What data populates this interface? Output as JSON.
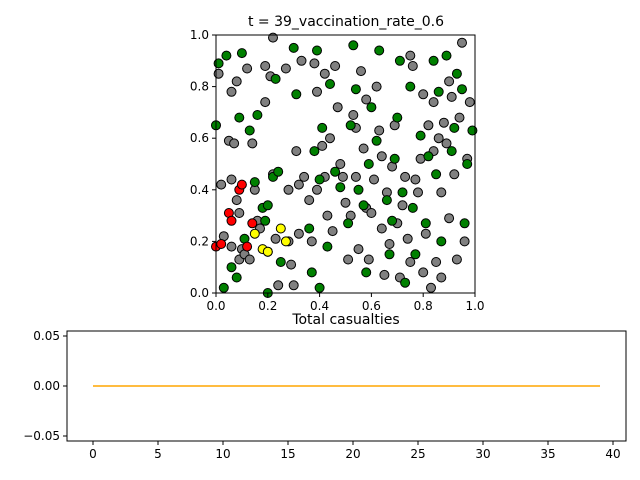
{
  "chart_data": [
    {
      "type": "scatter",
      "title": "t = 39_vaccination_rate_0.6",
      "xlabel": "",
      "ylabel": "",
      "xlim": [
        0,
        1
      ],
      "ylim": [
        0,
        1
      ],
      "xticks": [
        "0.0",
        "0.2",
        "0.4",
        "0.6",
        "0.8",
        "1.0"
      ],
      "yticks": [
        "0.0",
        "0.2",
        "0.4",
        "0.6",
        "0.8",
        "1.0"
      ],
      "grid": false,
      "colors": {
        "susceptible": "#808080",
        "vaccinated": "#008000",
        "infected": "#ff0000",
        "exposed": "#ffff00",
        "edge": "#000000"
      },
      "series": [
        {
          "status": "susceptible",
          "points": [
            [
              0.01,
              0.85
            ],
            [
              0.02,
              0.42
            ],
            [
              0.03,
              0.22
            ],
            [
              0.05,
              0.59
            ],
            [
              0.06,
              0.78
            ],
            [
              0.06,
              0.44
            ],
            [
              0.06,
              0.18
            ],
            [
              0.07,
              0.58
            ],
            [
              0.08,
              0.82
            ],
            [
              0.08,
              0.36
            ],
            [
              0.09,
              0.31
            ],
            [
              0.09,
              0.13
            ],
            [
              0.1,
              0.17
            ],
            [
              0.11,
              0.15
            ],
            [
              0.12,
              0.87
            ],
            [
              0.13,
              0.13
            ],
            [
              0.14,
              0.58
            ],
            [
              0.15,
              0.4
            ],
            [
              0.16,
              0.28
            ],
            [
              0.17,
              0.25
            ],
            [
              0.19,
              0.88
            ],
            [
              0.19,
              0.74
            ],
            [
              0.2,
              0.16
            ],
            [
              0.21,
              0.84
            ],
            [
              0.22,
              0.99
            ],
            [
              0.22,
              0.46
            ],
            [
              0.23,
              0.21
            ],
            [
              0.24,
              0.03
            ],
            [
              0.27,
              0.87
            ],
            [
              0.28,
              0.4
            ],
            [
              0.28,
              0.2
            ],
            [
              0.29,
              0.11
            ],
            [
              0.3,
              0.03
            ],
            [
              0.31,
              0.55
            ],
            [
              0.32,
              0.42
            ],
            [
              0.32,
              0.23
            ],
            [
              0.33,
              0.9
            ],
            [
              0.34,
              0.45
            ],
            [
              0.36,
              0.36
            ],
            [
              0.37,
              0.2
            ],
            [
              0.38,
              0.89
            ],
            [
              0.39,
              0.78
            ],
            [
              0.39,
              0.4
            ],
            [
              0.41,
              0.57
            ],
            [
              0.42,
              0.85
            ],
            [
              0.42,
              0.45
            ],
            [
              0.43,
              0.3
            ],
            [
              0.44,
              0.6
            ],
            [
              0.45,
              0.24
            ],
            [
              0.46,
              0.88
            ],
            [
              0.47,
              0.72
            ],
            [
              0.48,
              0.5
            ],
            [
              0.49,
              0.45
            ],
            [
              0.5,
              0.35
            ],
            [
              0.51,
              0.13
            ],
            [
              0.52,
              0.3
            ],
            [
              0.53,
              0.69
            ],
            [
              0.54,
              0.64
            ],
            [
              0.54,
              0.45
            ],
            [
              0.55,
              0.17
            ],
            [
              0.56,
              0.86
            ],
            [
              0.57,
              0.56
            ],
            [
              0.58,
              0.75
            ],
            [
              0.58,
              0.33
            ],
            [
              0.59,
              0.13
            ],
            [
              0.6,
              0.31
            ],
            [
              0.61,
              0.44
            ],
            [
              0.62,
              0.8
            ],
            [
              0.63,
              0.63
            ],
            [
              0.64,
              0.53
            ],
            [
              0.64,
              0.25
            ],
            [
              0.65,
              0.07
            ],
            [
              0.66,
              0.39
            ],
            [
              0.67,
              0.19
            ],
            [
              0.68,
              0.49
            ],
            [
              0.69,
              0.65
            ],
            [
              0.7,
              0.27
            ],
            [
              0.71,
              0.06
            ],
            [
              0.72,
              0.34
            ],
            [
              0.73,
              0.45
            ],
            [
              0.74,
              0.21
            ],
            [
              0.75,
              0.92
            ],
            [
              0.75,
              0.12
            ],
            [
              0.76,
              0.88
            ],
            [
              0.77,
              0.44
            ],
            [
              0.78,
              0.39
            ],
            [
              0.79,
              0.52
            ],
            [
              0.8,
              0.77
            ],
            [
              0.8,
              0.08
            ],
            [
              0.81,
              0.23
            ],
            [
              0.82,
              0.65
            ],
            [
              0.83,
              0.02
            ],
            [
              0.84,
              0.74
            ],
            [
              0.84,
              0.55
            ],
            [
              0.85,
              0.12
            ],
            [
              0.86,
              0.6
            ],
            [
              0.87,
              0.39
            ],
            [
              0.87,
              0.06
            ],
            [
              0.88,
              0.66
            ],
            [
              0.89,
              0.58
            ],
            [
              0.9,
              0.82
            ],
            [
              0.9,
              0.29
            ],
            [
              0.91,
              0.76
            ],
            [
              0.92,
              0.46
            ],
            [
              0.93,
              0.13
            ],
            [
              0.94,
              0.68
            ],
            [
              0.95,
              0.97
            ],
            [
              0.96,
              0.2
            ],
            [
              0.97,
              0.52
            ],
            [
              0.98,
              0.74
            ]
          ]
        },
        {
          "status": "vaccinated",
          "points": [
            [
              0.0,
              0.65
            ],
            [
              0.01,
              0.89
            ],
            [
              0.03,
              0.02
            ],
            [
              0.04,
              0.92
            ],
            [
              0.06,
              0.1
            ],
            [
              0.08,
              0.06
            ],
            [
              0.09,
              0.68
            ],
            [
              0.1,
              0.93
            ],
            [
              0.11,
              0.21
            ],
            [
              0.13,
              0.63
            ],
            [
              0.15,
              0.43
            ],
            [
              0.16,
              0.69
            ],
            [
              0.18,
              0.33
            ],
            [
              0.19,
              0.28
            ],
            [
              0.2,
              0.34
            ],
            [
              0.22,
              0.45
            ],
            [
              0.23,
              0.83
            ],
            [
              0.24,
              0.47
            ],
            [
              0.25,
              0.12
            ],
            [
              0.3,
              0.95
            ],
            [
              0.31,
              0.77
            ],
            [
              0.36,
              0.25
            ],
            [
              0.37,
              0.08
            ],
            [
              0.38,
              0.55
            ],
            [
              0.39,
              0.94
            ],
            [
              0.4,
              0.44
            ],
            [
              0.41,
              0.64
            ],
            [
              0.43,
              0.18
            ],
            [
              0.44,
              0.81
            ],
            [
              0.46,
              0.47
            ],
            [
              0.48,
              0.41
            ],
            [
              0.51,
              0.27
            ],
            [
              0.52,
              0.65
            ],
            [
              0.53,
              0.96
            ],
            [
              0.54,
              0.79
            ],
            [
              0.55,
              0.4
            ],
            [
              0.57,
              0.34
            ],
            [
              0.58,
              0.08
            ],
            [
              0.59,
              0.5
            ],
            [
              0.6,
              0.72
            ],
            [
              0.62,
              0.59
            ],
            [
              0.63,
              0.94
            ],
            [
              0.66,
              0.36
            ],
            [
              0.67,
              0.15
            ],
            [
              0.68,
              0.28
            ],
            [
              0.69,
              0.52
            ],
            [
              0.7,
              0.68
            ],
            [
              0.71,
              0.9
            ],
            [
              0.72,
              0.39
            ],
            [
              0.73,
              0.04
            ],
            [
              0.75,
              0.8
            ],
            [
              0.76,
              0.33
            ],
            [
              0.77,
              0.15
            ],
            [
              0.79,
              0.61
            ],
            [
              0.81,
              0.27
            ],
            [
              0.82,
              0.53
            ],
            [
              0.84,
              0.9
            ],
            [
              0.85,
              0.46
            ],
            [
              0.86,
              0.78
            ],
            [
              0.87,
              0.2
            ],
            [
              0.89,
              0.92
            ],
            [
              0.91,
              0.55
            ],
            [
              0.92,
              0.64
            ],
            [
              0.93,
              0.85
            ],
            [
              0.95,
              0.79
            ],
            [
              0.96,
              0.27
            ],
            [
              0.97,
              0.5
            ],
            [
              0.99,
              0.63
            ],
            [
              0.2,
              0.0
            ],
            [
              0.4,
              0.02
            ]
          ]
        },
        {
          "status": "infected",
          "points": [
            [
              0.0,
              0.18
            ],
            [
              0.02,
              0.19
            ],
            [
              0.05,
              0.31
            ],
            [
              0.06,
              0.28
            ],
            [
              0.09,
              0.4
            ],
            [
              0.1,
              0.42
            ],
            [
              0.12,
              0.18
            ],
            [
              0.14,
              0.27
            ]
          ]
        },
        {
          "status": "exposed",
          "points": [
            [
              0.15,
              0.23
            ],
            [
              0.18,
              0.17
            ],
            [
              0.2,
              0.16
            ],
            [
              0.25,
              0.25
            ],
            [
              0.27,
              0.2
            ]
          ]
        }
      ]
    },
    {
      "type": "line",
      "title": "Total casualties",
      "xlabel": "",
      "ylabel": "",
      "xlim": [
        -2.0,
        41.0
      ],
      "ylim": [
        -0.055,
        0.055
      ],
      "xticks": [
        "0",
        "5",
        "10",
        "15",
        "20",
        "25",
        "30",
        "35",
        "40"
      ],
      "yticks": [
        "−0.05",
        "0.00",
        "0.05"
      ],
      "grid": false,
      "color": "#ffa500",
      "x": [
        0,
        1,
        2,
        3,
        4,
        5,
        6,
        7,
        8,
        9,
        10,
        11,
        12,
        13,
        14,
        15,
        16,
        17,
        18,
        19,
        20,
        21,
        22,
        23,
        24,
        25,
        26,
        27,
        28,
        29,
        30,
        31,
        32,
        33,
        34,
        35,
        36,
        37,
        38,
        39
      ],
      "y": [
        0,
        0,
        0,
        0,
        0,
        0,
        0,
        0,
        0,
        0,
        0,
        0,
        0,
        0,
        0,
        0,
        0,
        0,
        0,
        0,
        0,
        0,
        0,
        0,
        0,
        0,
        0,
        0,
        0,
        0,
        0,
        0,
        0,
        0,
        0,
        0,
        0,
        0,
        0,
        0
      ]
    }
  ]
}
